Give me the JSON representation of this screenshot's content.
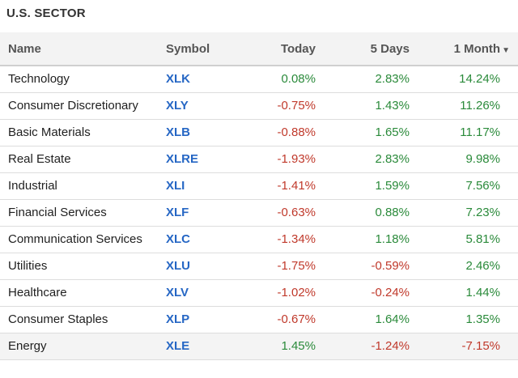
{
  "title": "U.S. SECTOR",
  "headers": {
    "name": "Name",
    "symbol": "Symbol",
    "today": "Today",
    "five_days": "5 Days",
    "one_month": "1 Month",
    "sort_icon": "caret-down-icon"
  },
  "colors": {
    "positive": "#2a8a3a",
    "negative": "#c0392b",
    "symbol": "#2566c4"
  },
  "rows": [
    {
      "name": "Technology",
      "symbol": "XLK",
      "today": "0.08%",
      "five_days": "2.83%",
      "one_month": "14.24%"
    },
    {
      "name": "Consumer Discretionary",
      "symbol": "XLY",
      "today": "-0.75%",
      "five_days": "1.43%",
      "one_month": "11.26%"
    },
    {
      "name": "Basic Materials",
      "symbol": "XLB",
      "today": "-0.88%",
      "five_days": "1.65%",
      "one_month": "11.17%"
    },
    {
      "name": "Real Estate",
      "symbol": "XLRE",
      "today": "-1.93%",
      "five_days": "2.83%",
      "one_month": "9.98%"
    },
    {
      "name": "Industrial",
      "symbol": "XLI",
      "today": "-1.41%",
      "five_days": "1.59%",
      "one_month": "7.56%"
    },
    {
      "name": "Financial Services",
      "symbol": "XLF",
      "today": "-0.63%",
      "five_days": "0.88%",
      "one_month": "7.23%"
    },
    {
      "name": "Communication Services",
      "symbol": "XLC",
      "today": "-1.34%",
      "five_days": "1.18%",
      "one_month": "5.81%"
    },
    {
      "name": "Utilities",
      "symbol": "XLU",
      "today": "-1.75%",
      "five_days": "-0.59%",
      "one_month": "2.46%"
    },
    {
      "name": "Healthcare",
      "symbol": "XLV",
      "today": "-1.02%",
      "five_days": "-0.24%",
      "one_month": "1.44%"
    },
    {
      "name": "Consumer Staples",
      "symbol": "XLP",
      "today": "-0.67%",
      "five_days": "1.64%",
      "one_month": "1.35%"
    },
    {
      "name": "Energy",
      "symbol": "XLE",
      "today": "1.45%",
      "five_days": "-1.24%",
      "one_month": "-7.15%"
    }
  ]
}
